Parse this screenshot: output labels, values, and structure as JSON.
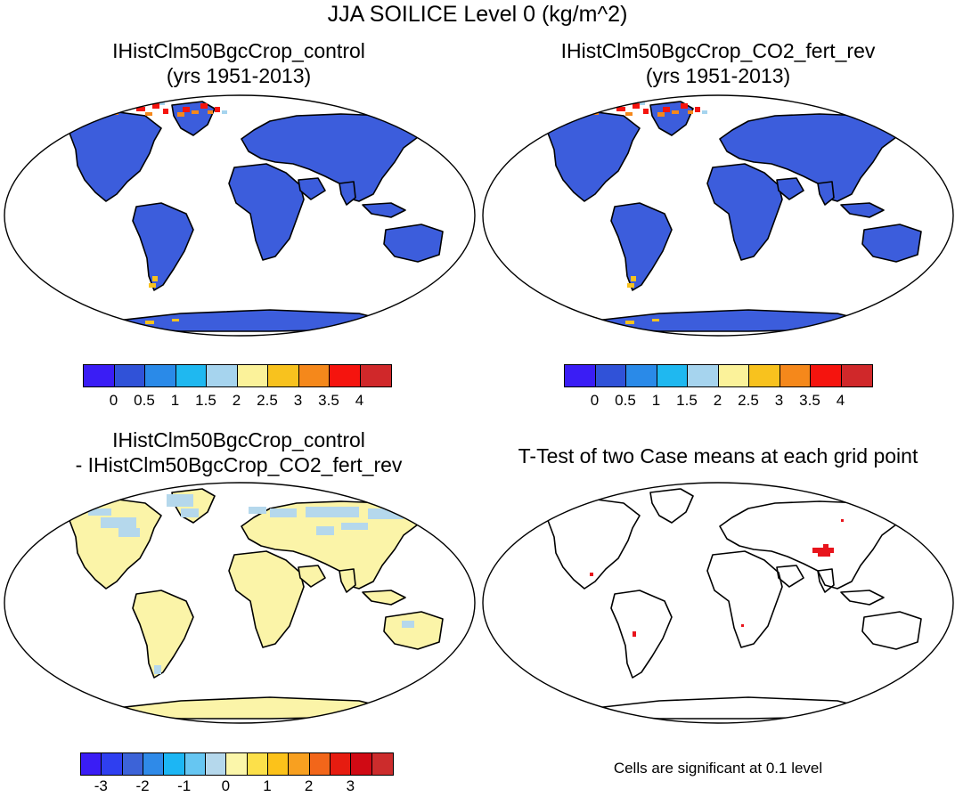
{
  "title": "JJA SOILICE Level 0 (kg/m^2)",
  "panels": {
    "control": {
      "title_line1": "IHistClm50BgcCrop_control",
      "title_line2": "(yrs 1951-2013)",
      "land_color": "#3c5ddc"
    },
    "co2": {
      "title_line1": "IHistClm50BgcCrop_CO2_fert_rev",
      "title_line2": "(yrs 1951-2013)",
      "land_color": "#3c5ddc"
    },
    "diff": {
      "title_line1": "IHistClm50BgcCrop_control",
      "title_line2": "- IHistClm50BgcCrop_CO2_fert_rev",
      "land_color": "#fbf4a8",
      "patch_color": "#b5d8ec"
    },
    "ttest": {
      "title_line1": "T-Test of two Case means at each grid point",
      "note": "Cells are significant at 0.1 level",
      "signif_color": "#e8141c"
    }
  },
  "colorbar_abs": {
    "colors": [
      "#3a1df5",
      "#3052d8",
      "#2a8ae8",
      "#1fb8f0",
      "#a6d4ee",
      "#fbf29a",
      "#f8c21e",
      "#f5881b",
      "#f5140e",
      "#d0282a"
    ],
    "ticks": [
      "0",
      "0.5",
      "1",
      "1.5",
      "2",
      "2.5",
      "3",
      "3.5",
      "4"
    ]
  },
  "colorbar_diff": {
    "colors": [
      "#3a1df5",
      "#2f3ff0",
      "#3c63d8",
      "#2f8ae8",
      "#1cb6f4",
      "#66c6f2",
      "#b5d8ec",
      "#fbf6aa",
      "#fce04a",
      "#fcc21a",
      "#f8a020",
      "#f2661a",
      "#e61c10",
      "#d00a14",
      "#cc2c2c"
    ],
    "ticks": [
      "-3",
      "-2",
      "-1",
      "0",
      "1",
      "2",
      "3"
    ]
  }
}
